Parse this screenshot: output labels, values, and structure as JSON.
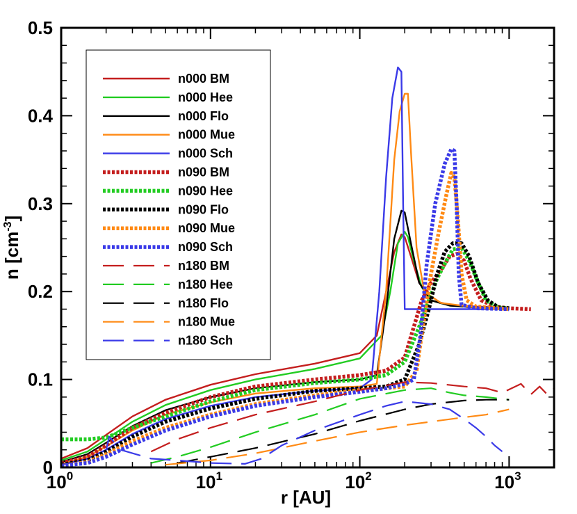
{
  "chart_data": {
    "type": "line",
    "xscale": "log",
    "xlim": [
      1,
      2000
    ],
    "ylim": [
      0,
      0.5
    ],
    "xlabel": "r [AU]",
    "ylabel_main": "n [cm",
    "ylabel_sup": "-3",
    "ylabel_end": "]",
    "y_ticks": [
      "0",
      "0.1",
      "0.2",
      "0.3",
      "0.4",
      "0.5"
    ],
    "y_tick_values": [
      0,
      0.1,
      0.2,
      0.3,
      0.4,
      0.5
    ],
    "x_tick_values": [
      1,
      10,
      100,
      1000
    ],
    "x_ticks": [
      {
        "base": "10",
        "exp": "0"
      },
      {
        "base": "10",
        "exp": "1"
      },
      {
        "base": "10",
        "exp": "2"
      },
      {
        "base": "10",
        "exp": "3"
      }
    ],
    "series": [
      {
        "name": "n000 BM",
        "color": "#c41e1e",
        "style": "solid",
        "points": [
          [
            1,
            0.01
          ],
          [
            1.5,
            0.022
          ],
          [
            2,
            0.037
          ],
          [
            3,
            0.058
          ],
          [
            5,
            0.077
          ],
          [
            10,
            0.094
          ],
          [
            20,
            0.106
          ],
          [
            50,
            0.118
          ],
          [
            100,
            0.13
          ],
          [
            130,
            0.15
          ],
          [
            150,
            0.2
          ],
          [
            170,
            0.245
          ],
          [
            190,
            0.265
          ],
          [
            200,
            0.262
          ],
          [
            220,
            0.24
          ],
          [
            250,
            0.21
          ],
          [
            300,
            0.19
          ],
          [
            400,
            0.185
          ],
          [
            600,
            0.183
          ],
          [
            1000,
            0.182
          ]
        ]
      },
      {
        "name": "n000 Hee",
        "color": "#22cc22",
        "style": "solid",
        "points": [
          [
            1,
            0.008
          ],
          [
            1.5,
            0.018
          ],
          [
            2,
            0.032
          ],
          [
            3,
            0.052
          ],
          [
            5,
            0.071
          ],
          [
            10,
            0.088
          ],
          [
            20,
            0.1
          ],
          [
            50,
            0.112
          ],
          [
            100,
            0.124
          ],
          [
            140,
            0.15
          ],
          [
            160,
            0.2
          ],
          [
            180,
            0.255
          ],
          [
            200,
            0.268
          ],
          [
            210,
            0.262
          ],
          [
            230,
            0.235
          ],
          [
            260,
            0.205
          ],
          [
            300,
            0.19
          ],
          [
            400,
            0.184
          ],
          [
            600,
            0.182
          ],
          [
            1000,
            0.182
          ]
        ]
      },
      {
        "name": "n000 Flo",
        "color": "#000000",
        "style": "solid",
        "points": [
          [
            1,
            0.006
          ],
          [
            1.5,
            0.015
          ],
          [
            2,
            0.028
          ],
          [
            3,
            0.047
          ],
          [
            5,
            0.065
          ],
          [
            10,
            0.08
          ],
          [
            20,
            0.09
          ],
          [
            50,
            0.097
          ],
          [
            100,
            0.1
          ],
          [
            130,
            0.105
          ],
          [
            150,
            0.18
          ],
          [
            170,
            0.26
          ],
          [
            190,
            0.292
          ],
          [
            200,
            0.29
          ],
          [
            220,
            0.255
          ],
          [
            250,
            0.21
          ],
          [
            300,
            0.19
          ],
          [
            400,
            0.184
          ],
          [
            600,
            0.182
          ],
          [
            1000,
            0.182
          ]
        ]
      },
      {
        "name": "n000 Mue",
        "color": "#ff8a14",
        "style": "solid",
        "points": [
          [
            1,
            0.004
          ],
          [
            1.5,
            0.012
          ],
          [
            2,
            0.024
          ],
          [
            3,
            0.042
          ],
          [
            5,
            0.06
          ],
          [
            10,
            0.074
          ],
          [
            20,
            0.084
          ],
          [
            50,
            0.09
          ],
          [
            100,
            0.092
          ],
          [
            130,
            0.095
          ],
          [
            150,
            0.2
          ],
          [
            170,
            0.35
          ],
          [
            185,
            0.405
          ],
          [
            200,
            0.425
          ],
          [
            210,
            0.425
          ],
          [
            220,
            0.36
          ],
          [
            240,
            0.25
          ],
          [
            270,
            0.2
          ],
          [
            350,
            0.187
          ],
          [
            600,
            0.182
          ],
          [
            1000,
            0.182
          ]
        ]
      },
      {
        "name": "n000 Sch",
        "color": "#3a3ae8",
        "style": "solid",
        "points": [
          [
            1,
            0.003
          ],
          [
            1.5,
            0.01
          ],
          [
            2,
            0.02
          ],
          [
            3,
            0.038
          ],
          [
            5,
            0.055
          ],
          [
            10,
            0.07
          ],
          [
            20,
            0.08
          ],
          [
            50,
            0.087
          ],
          [
            100,
            0.09
          ],
          [
            120,
            0.1
          ],
          [
            135,
            0.2
          ],
          [
            150,
            0.33
          ],
          [
            165,
            0.42
          ],
          [
            180,
            0.455
          ],
          [
            190,
            0.45
          ],
          [
            195,
            0.3
          ],
          [
            200,
            0.18
          ],
          [
            300,
            0.18
          ],
          [
            600,
            0.18
          ],
          [
            1000,
            0.18
          ]
        ]
      },
      {
        "name": "n090 BM",
        "color": "#c41e1e",
        "style": "dotted",
        "points": [
          [
            1,
            0.005
          ],
          [
            1.5,
            0.012
          ],
          [
            2,
            0.025
          ],
          [
            3,
            0.045
          ],
          [
            5,
            0.062
          ],
          [
            10,
            0.08
          ],
          [
            20,
            0.092
          ],
          [
            50,
            0.1
          ],
          [
            100,
            0.105
          ],
          [
            150,
            0.11
          ],
          [
            200,
            0.125
          ],
          [
            230,
            0.16
          ],
          [
            260,
            0.19
          ],
          [
            300,
            0.21
          ],
          [
            350,
            0.225
          ],
          [
            400,
            0.24
          ],
          [
            450,
            0.243
          ],
          [
            500,
            0.235
          ],
          [
            550,
            0.215
          ],
          [
            650,
            0.19
          ],
          [
            800,
            0.183
          ],
          [
            1000,
            0.181
          ],
          [
            1400,
            0.18
          ]
        ]
      },
      {
        "name": "n090 Hee",
        "color": "#22cc22",
        "style": "dotted",
        "points": [
          [
            1,
            0.032
          ],
          [
            1.5,
            0.032
          ],
          [
            2,
            0.034
          ],
          [
            3,
            0.045
          ],
          [
            5,
            0.058
          ],
          [
            10,
            0.075
          ],
          [
            20,
            0.088
          ],
          [
            50,
            0.096
          ],
          [
            100,
            0.1
          ],
          [
            150,
            0.105
          ],
          [
            200,
            0.12
          ],
          [
            250,
            0.16
          ],
          [
            290,
            0.19
          ],
          [
            330,
            0.215
          ],
          [
            380,
            0.235
          ],
          [
            420,
            0.248
          ],
          [
            480,
            0.25
          ],
          [
            540,
            0.235
          ],
          [
            620,
            0.21
          ],
          [
            700,
            0.19
          ],
          [
            850,
            0.182
          ],
          [
            1000,
            0.181
          ]
        ]
      },
      {
        "name": "n090 Flo",
        "color": "#000000",
        "style": "dotted",
        "points": [
          [
            1,
            0.003
          ],
          [
            1.5,
            0.008
          ],
          [
            2,
            0.018
          ],
          [
            3,
            0.035
          ],
          [
            5,
            0.052
          ],
          [
            10,
            0.067
          ],
          [
            20,
            0.078
          ],
          [
            50,
            0.087
          ],
          [
            100,
            0.09
          ],
          [
            150,
            0.092
          ],
          [
            200,
            0.1
          ],
          [
            250,
            0.14
          ],
          [
            290,
            0.18
          ],
          [
            330,
            0.22
          ],
          [
            370,
            0.245
          ],
          [
            420,
            0.255
          ],
          [
            480,
            0.255
          ],
          [
            540,
            0.24
          ],
          [
            620,
            0.21
          ],
          [
            720,
            0.19
          ],
          [
            850,
            0.182
          ],
          [
            1000,
            0.181
          ]
        ]
      },
      {
        "name": "n090 Mue",
        "color": "#ff8a14",
        "style": "dotted",
        "points": [
          [
            1,
            0.002
          ],
          [
            1.5,
            0.006
          ],
          [
            2,
            0.015
          ],
          [
            3,
            0.03
          ],
          [
            5,
            0.045
          ],
          [
            10,
            0.06
          ],
          [
            20,
            0.072
          ],
          [
            50,
            0.082
          ],
          [
            100,
            0.088
          ],
          [
            150,
            0.09
          ],
          [
            200,
            0.092
          ],
          [
            240,
            0.11
          ],
          [
            270,
            0.17
          ],
          [
            300,
            0.22
          ],
          [
            340,
            0.27
          ],
          [
            380,
            0.31
          ],
          [
            410,
            0.335
          ],
          [
            430,
            0.33
          ],
          [
            455,
            0.28
          ],
          [
            480,
            0.22
          ],
          [
            520,
            0.19
          ],
          [
            600,
            0.183
          ],
          [
            1000,
            0.18
          ]
        ]
      },
      {
        "name": "n090 Sch",
        "color": "#3a3ae8",
        "style": "dotted",
        "points": [
          [
            1,
            0.002
          ],
          [
            1.5,
            0.005
          ],
          [
            2,
            0.012
          ],
          [
            3,
            0.026
          ],
          [
            5,
            0.042
          ],
          [
            10,
            0.058
          ],
          [
            20,
            0.07
          ],
          [
            50,
            0.08
          ],
          [
            100,
            0.086
          ],
          [
            150,
            0.09
          ],
          [
            200,
            0.095
          ],
          [
            230,
            0.1
          ],
          [
            255,
            0.15
          ],
          [
            280,
            0.23
          ],
          [
            320,
            0.3
          ],
          [
            370,
            0.345
          ],
          [
            410,
            0.362
          ],
          [
            430,
            0.36
          ],
          [
            445,
            0.3
          ],
          [
            460,
            0.22
          ],
          [
            480,
            0.185
          ],
          [
            600,
            0.181
          ],
          [
            1000,
            0.18
          ]
        ]
      },
      {
        "name": "n180 BM",
        "color": "#c41e1e",
        "style": "dashed",
        "points": [
          [
            4,
            0.018
          ],
          [
            6,
            0.032
          ],
          [
            10,
            0.045
          ],
          [
            20,
            0.06
          ],
          [
            50,
            0.075
          ],
          [
            100,
            0.088
          ],
          [
            200,
            0.097
          ],
          [
            300,
            0.096
          ],
          [
            500,
            0.092
          ],
          [
            700,
            0.09
          ],
          [
            900,
            0.085
          ],
          [
            1200,
            0.095
          ],
          [
            1400,
            0.083
          ],
          [
            1600,
            0.092
          ],
          [
            1800,
            0.083
          ],
          [
            2000,
            0.09
          ]
        ]
      },
      {
        "name": "n180 Hee",
        "color": "#22cc22",
        "style": "dashed",
        "points": [
          [
            4,
            0.005
          ],
          [
            6,
            0.012
          ],
          [
            10,
            0.023
          ],
          [
            20,
            0.04
          ],
          [
            50,
            0.06
          ],
          [
            100,
            0.078
          ],
          [
            200,
            0.088
          ],
          [
            300,
            0.09
          ],
          [
            400,
            0.085
          ],
          [
            500,
            0.082
          ],
          [
            700,
            0.08
          ],
          [
            1000,
            0.077
          ]
        ]
      },
      {
        "name": "n180 Flo",
        "color": "#000000",
        "style": "dashed",
        "points": [
          [
            6,
            0.005
          ],
          [
            10,
            0.012
          ],
          [
            20,
            0.022
          ],
          [
            50,
            0.038
          ],
          [
            100,
            0.053
          ],
          [
            200,
            0.066
          ],
          [
            300,
            0.072
          ],
          [
            500,
            0.076
          ],
          [
            700,
            0.077
          ],
          [
            1000,
            0.077
          ]
        ]
      },
      {
        "name": "n180 Mue",
        "color": "#ff8a14",
        "style": "dashed",
        "points": [
          [
            5,
            0.003
          ],
          [
            10,
            0.008
          ],
          [
            20,
            0.016
          ],
          [
            50,
            0.03
          ],
          [
            100,
            0.04
          ],
          [
            200,
            0.048
          ],
          [
            300,
            0.052
          ],
          [
            500,
            0.057
          ],
          [
            700,
            0.06
          ],
          [
            1000,
            0.066
          ]
        ]
      },
      {
        "name": "n180 Sch",
        "color": "#3a3ae8",
        "style": "dashed",
        "points": [
          [
            2,
            0.02
          ],
          [
            2.1,
            0.035
          ],
          [
            2.5,
            0.02
          ],
          [
            4,
            0.01
          ],
          [
            6,
            0.008
          ],
          [
            10,
            0.005
          ],
          [
            17,
            0.004
          ],
          [
            22,
            0.01
          ],
          [
            30,
            0.025
          ],
          [
            50,
            0.042
          ],
          [
            100,
            0.06
          ],
          [
            150,
            0.07
          ],
          [
            200,
            0.075
          ],
          [
            300,
            0.072
          ],
          [
            400,
            0.066
          ],
          [
            500,
            0.055
          ],
          [
            600,
            0.045
          ],
          [
            700,
            0.035
          ],
          [
            800,
            0.025
          ],
          [
            900,
            0.018
          ]
        ]
      }
    ]
  }
}
